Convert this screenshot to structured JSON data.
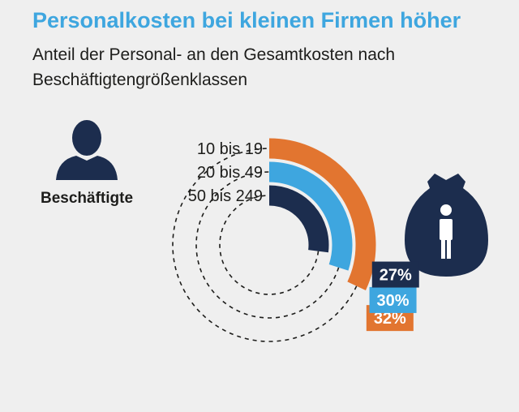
{
  "title": "Personalkosten bei kleinen Firmen höher",
  "subtitle": "Anteil der Personal- an den Gesamtkosten nach Beschäftigtengrößenklassen",
  "person_icon_label": "Beschäftigte",
  "chart_data": {
    "type": "radial-bar",
    "title": "Personalkosten bei kleinen Firmen höher",
    "subtitle": "Anteil der Personal- an den Gesamtkosten nach Beschäftigtengrößenklassen",
    "unit": "%",
    "categories": [
      "10 bis 19",
      "20 bis 49",
      "50 bis 249"
    ],
    "values": [
      32,
      30,
      27
    ],
    "value_labels": [
      "32%",
      "30%",
      "27%"
    ],
    "colors": [
      "#e27530",
      "#3ea6df",
      "#1c2d4e"
    ],
    "legend_title": "Beschäftigte"
  },
  "colors": {
    "title": "#3ea6df",
    "background": "#efefef",
    "icon": "#1c2d4e"
  }
}
